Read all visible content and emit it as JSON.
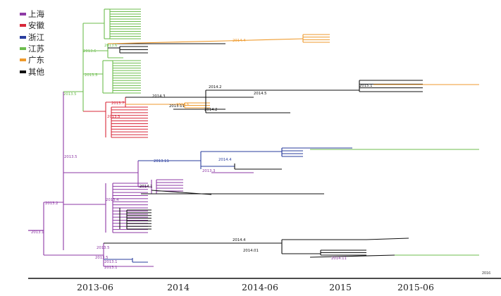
{
  "legend": [
    {
      "label": "上海",
      "color": "#8e3aa6"
    },
    {
      "label": "安徽",
      "color": "#d8283a"
    },
    {
      "label": "浙江",
      "color": "#2a3e9e"
    },
    {
      "label": "江苏",
      "color": "#6dbd4e"
    },
    {
      "label": "广东",
      "color": "#ef9a2c"
    },
    {
      "label": "其他",
      "color": "#111111"
    }
  ],
  "axis": {
    "ticks": [
      "2013-06",
      "2014",
      "2014-06",
      "2015",
      "2015-06"
    ],
    "end_label": "2016"
  },
  "node_labels": [
    "2013.1",
    "2013.2",
    "2013.5",
    "2013.5",
    "2013.6",
    "2013.5",
    "2013.6",
    "2014.4",
    "2013.7",
    "2014.2",
    "2014.5",
    "2015.1",
    "2013.6",
    "2013.5",
    "2014.3",
    "2014.2",
    "2013.11",
    "2013.11",
    "2014.4",
    "2013.3",
    "2014.1",
    "2013.4",
    "2013.5",
    "2014.4",
    "2014.01",
    "2013.5",
    "2013.1",
    "2013.1",
    "2014.11"
  ]
}
